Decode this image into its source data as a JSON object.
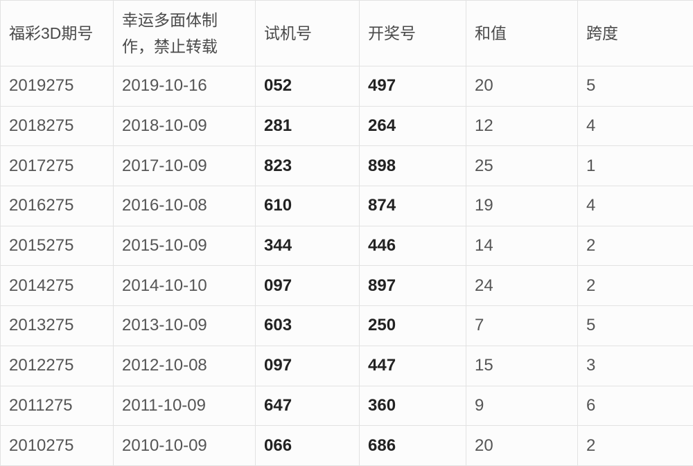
{
  "colors": {
    "page_background": "#fbfbfb",
    "cell_background": "#fcfcfc",
    "border": "#e2e2e2",
    "header_text": "#4a4a4a",
    "cell_text": "#555555",
    "bold_cell_text": "#222222"
  },
  "table": {
    "columns": [
      "福彩3D期号",
      "幸运多面体制\n作，禁止转载",
      "试机号",
      "开奖号",
      "和值",
      "跨度"
    ],
    "rows": [
      [
        "2019275",
        "2019-10-16",
        "052",
        "497",
        "20",
        "5"
      ],
      [
        "2018275",
        "2018-10-09",
        "281",
        "264",
        "12",
        "4"
      ],
      [
        "2017275",
        "2017-10-09",
        "823",
        "898",
        "25",
        "1"
      ],
      [
        "2016275",
        "2016-10-08",
        "610",
        "874",
        "19",
        "4"
      ],
      [
        "2015275",
        "2015-10-09",
        "344",
        "446",
        "14",
        "2"
      ],
      [
        "2014275",
        "2014-10-10",
        "097",
        "897",
        "24",
        "2"
      ],
      [
        "2013275",
        "2013-10-09",
        "603",
        "250",
        "7",
        "5"
      ],
      [
        "2012275",
        "2012-10-08",
        "097",
        "447",
        "15",
        "3"
      ],
      [
        "2011275",
        "2011-10-09",
        "647",
        "360",
        "9",
        "6"
      ],
      [
        "2010275",
        "2010-10-09",
        "066",
        "686",
        "20",
        "2"
      ]
    ]
  }
}
